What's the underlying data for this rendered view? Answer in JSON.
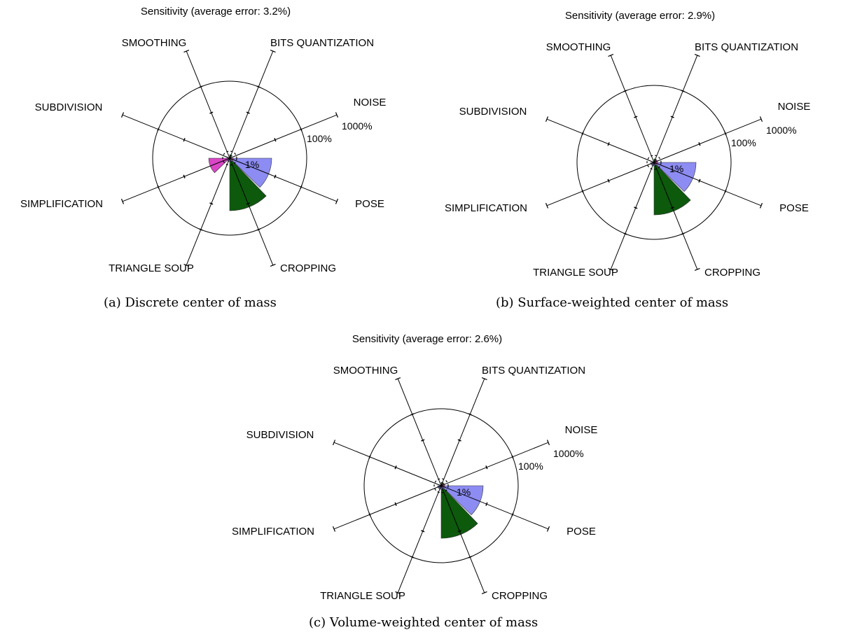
{
  "chart_data": [
    {
      "type": "radar-sector",
      "title": "Sensitivity (average error: 3.2%)",
      "caption": "(a)  Discrete center of mass",
      "axes": [
        "NOISE",
        "POSE",
        "CROPPING",
        "TRIANGLE SOUP",
        "SIMPLIFICATION",
        "SUBDIVISION",
        "SMOOTHING",
        "BITS QUANTIZATION"
      ],
      "scale": "log",
      "ring_labels": [
        "1%",
        "100%",
        "1000%"
      ],
      "values": [
        0.5,
        10,
        20,
        0.5,
        2.5,
        0.5,
        0.5,
        0.5
      ],
      "sector_colors": [
        "#8c8cf2",
        "#8c8cf2",
        "#0d5a0d",
        "#0d5a0d",
        "#d946c6",
        "#d946c6",
        "#8c8cf2",
        "#8c8cf2"
      ]
    },
    {
      "type": "radar-sector",
      "title": "Sensitivity (average error: 2.9%)",
      "caption": "(b)  Surface-weighted center of mass",
      "axes": [
        "NOISE",
        "POSE",
        "CROPPING",
        "TRIANGLE SOUP",
        "SIMPLIFICATION",
        "SUBDIVISION",
        "SMOOTHING",
        "BITS QUANTIZATION"
      ],
      "scale": "log",
      "ring_labels": [
        "1%",
        "100%",
        "1000%"
      ],
      "values": [
        0.5,
        10,
        20,
        0.5,
        0.5,
        0.5,
        0.5,
        0.5
      ],
      "sector_colors": [
        "#8c8cf2",
        "#8c8cf2",
        "#0d5a0d",
        "#0d5a0d",
        "#d946c6",
        "#d946c6",
        "#8c8cf2",
        "#8c8cf2"
      ]
    },
    {
      "type": "radar-sector",
      "title": "Sensitivity (average error: 2.6%)",
      "caption": "(c)  Volume-weighted center of mass",
      "axes": [
        "NOISE",
        "POSE",
        "CROPPING",
        "TRIANGLE SOUP",
        "SIMPLIFICATION",
        "SUBDIVISION",
        "SMOOTHING",
        "BITS QUANTIZATION"
      ],
      "scale": "log",
      "ring_labels": [
        "1%",
        "100%",
        "1000%"
      ],
      "values": [
        0.5,
        10,
        20,
        0.5,
        0.5,
        0.5,
        0.5,
        0.5
      ],
      "sector_colors": [
        "#8c8cf2",
        "#8c8cf2",
        "#0d5a0d",
        "#0d5a0d",
        "#d946c6",
        "#d946c6",
        "#8c8cf2",
        "#8c8cf2"
      ]
    }
  ]
}
